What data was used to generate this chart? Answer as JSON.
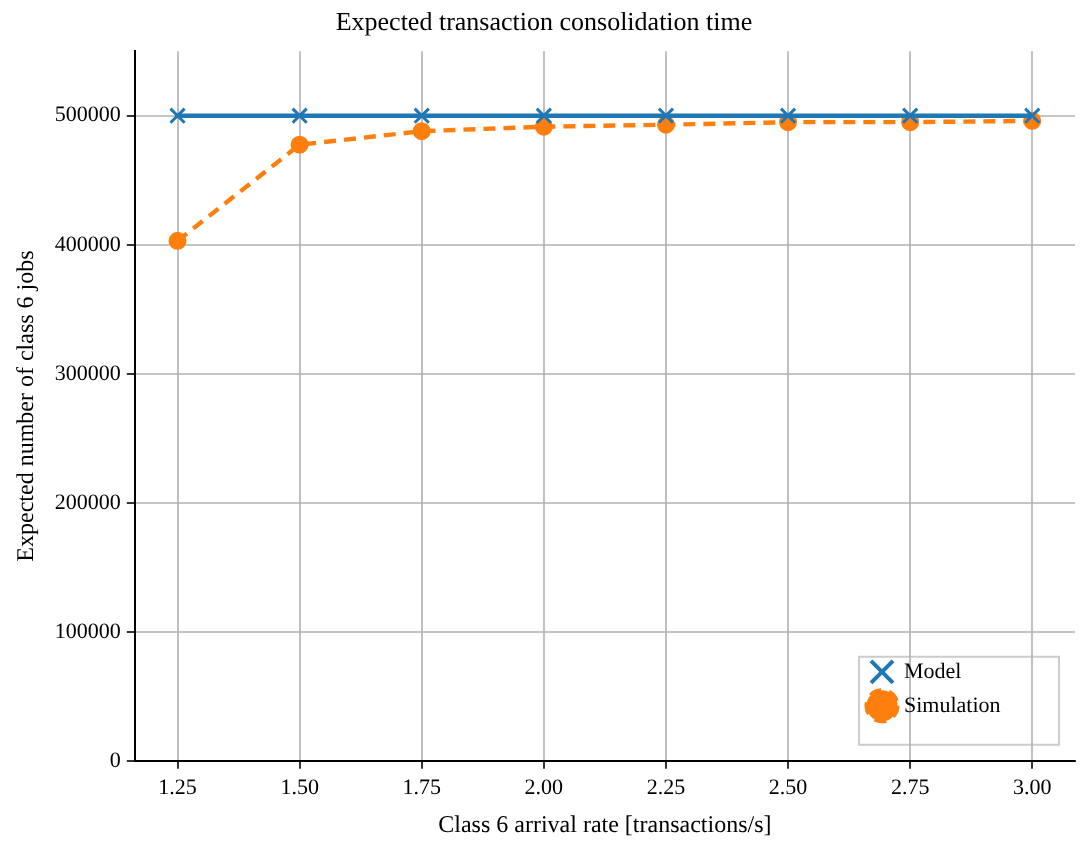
{
  "chart_data": {
    "type": "line",
    "title": "Expected transaction consolidation time",
    "xlabel": "Class 6 arrival rate [transactions/s]",
    "ylabel": "Expected number of class 6 jobs",
    "x": [
      1.25,
      1.5,
      1.75,
      2.0,
      2.25,
      2.5,
      2.75,
      3.0
    ],
    "series": [
      {
        "name": "Model",
        "color": "#1f77b4",
        "marker": "cross",
        "line_style": "solid",
        "values": [
          500000,
          500000,
          500000,
          500000,
          500000,
          500000,
          500000,
          500000
        ]
      },
      {
        "name": "Simulation",
        "color": "#ff7f0e",
        "marker": "circle",
        "line_style": "dashed",
        "values": [
          403000,
          477500,
          488000,
          491500,
          493000,
          495000,
          495000,
          496000
        ]
      }
    ],
    "xlim": [
      1.1625,
      3.0875
    ],
    "xticks": [
      1.25,
      {
        "value": 1.5,
        "label": "1.50"
      },
      1.75,
      {
        "value": 2.0,
        "label": "2.00"
      },
      2.25,
      {
        "value": 2.5,
        "label": "2.50"
      },
      2.75,
      {
        "value": 3.0,
        "label": "3.00"
      }
    ],
    "ylim": [
      0,
      550000
    ],
    "yticks": [
      0,
      100000,
      200000,
      300000,
      400000,
      500000
    ],
    "grid": true,
    "legend": "bottom right"
  }
}
